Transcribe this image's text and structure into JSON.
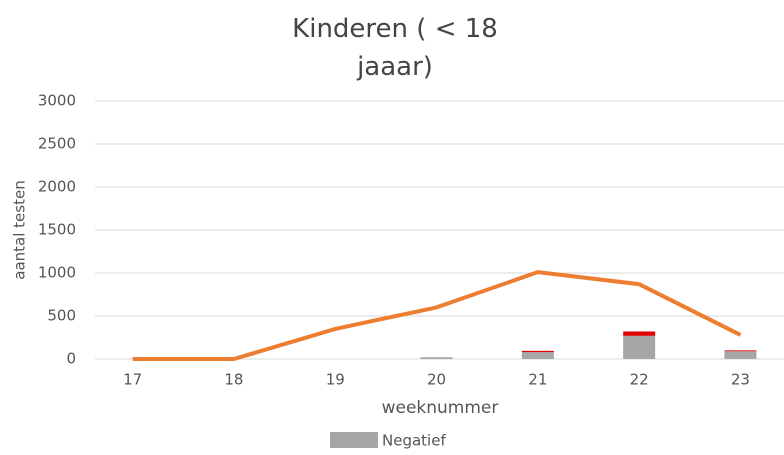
{
  "chart_data": {
    "type": "bar",
    "title": "Kinderen ( < 18\njaaar)",
    "x_label": "weeknummer",
    "y_label": "aantal testen",
    "categories": [
      "17",
      "18",
      "19",
      "20",
      "21",
      "22",
      "23"
    ],
    "series": [
      {
        "name": "Negatief",
        "color": "#a6a6a6",
        "values": [
          0,
          0,
          0,
          20,
          80,
          270,
          90
        ]
      },
      {
        "color": "#e00000",
        "values": [
          0,
          0,
          0,
          0,
          15,
          50,
          10
        ]
      },
      {
        "type": "line",
        "color": "#ed7d31",
        "values": [
          0,
          0,
          350,
          600,
          1010,
          870,
          280
        ]
      }
    ],
    "ylim": [
      0,
      3000
    ],
    "yticks": [
      0,
      500,
      1000,
      1500,
      2000,
      2500,
      3000
    ],
    "grid": true,
    "legend": "bottom"
  }
}
